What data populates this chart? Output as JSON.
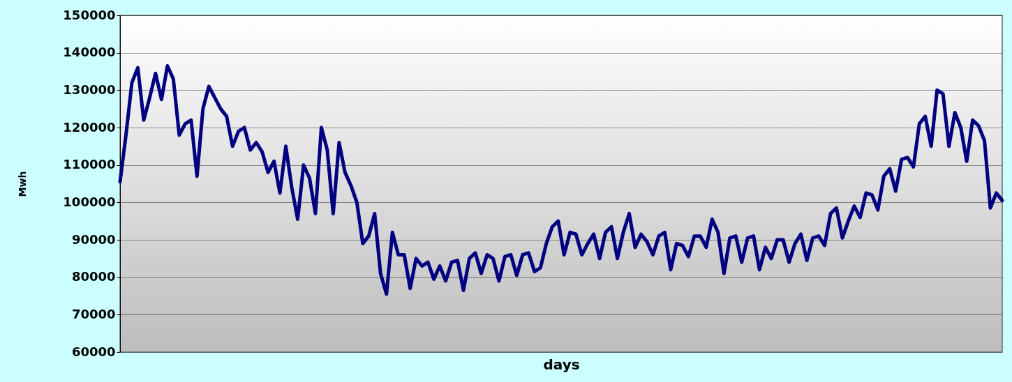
{
  "chart_data": {
    "type": "line",
    "xlabel": "days",
    "ylabel": "Mwh",
    "categories": [
      null,
      null,
      null,
      null,
      null,
      null,
      null,
      null,
      null,
      null,
      null,
      null,
      null,
      null,
      null,
      null,
      null,
      null,
      null,
      null,
      null,
      null,
      null,
      null,
      null,
      null,
      null,
      null,
      null,
      null,
      null,
      null,
      null,
      null,
      null,
      null,
      null,
      null,
      null,
      null,
      null,
      null,
      null,
      null,
      null,
      null,
      null,
      null,
      null,
      null,
      null,
      null,
      null,
      null,
      null,
      null,
      null,
      null,
      null,
      null,
      null,
      null,
      null,
      null,
      null,
      null,
      null,
      null,
      null,
      null,
      null,
      null,
      null,
      null,
      null,
      null,
      null,
      null,
      null,
      null,
      null,
      null,
      null,
      null,
      null,
      null,
      null,
      null,
      null,
      null,
      null,
      null,
      null,
      null,
      null,
      null,
      null,
      null,
      null,
      null,
      null,
      null,
      null,
      null,
      null,
      null,
      null,
      null,
      null,
      null,
      null,
      null,
      null,
      null,
      null,
      null,
      null,
      null,
      null,
      null,
      null,
      null,
      null,
      null,
      null,
      null,
      null,
      null,
      null,
      null,
      null,
      null,
      null,
      null,
      null,
      null,
      null,
      null,
      null,
      null,
      null,
      null,
      null,
      null,
      null,
      null,
      null,
      null,
      null,
      null
    ],
    "series": [
      {
        "color": "#000080",
        "values": [
          105500,
          118000,
          132000,
          136000,
          122000,
          128000,
          134500,
          127500,
          136500,
          133000,
          118000,
          121000,
          122000,
          107000,
          125000,
          131000,
          128000,
          125000,
          123000,
          115000,
          119000,
          120000,
          114000,
          116000,
          113500,
          108000,
          111000,
          102500,
          115000,
          104000,
          95500,
          110000,
          106500,
          97000,
          120000,
          114000,
          97000,
          116000,
          108000,
          104500,
          100000,
          89000,
          91000,
          97000,
          81000,
          75500,
          92000,
          86000,
          86000,
          77000,
          85000,
          83000,
          84000,
          79500,
          83000,
          79000,
          84000,
          84500,
          76500,
          85000,
          86500,
          81000,
          86000,
          85000,
          79000,
          85500,
          86000,
          80500,
          86000,
          86500,
          81500,
          82500,
          89000,
          93500,
          95000,
          86000,
          92000,
          91500,
          86000,
          89000,
          91500,
          85000,
          92000,
          93500,
          85000,
          92000,
          97000,
          88000,
          91500,
          89500,
          86000,
          91000,
          92000,
          82000,
          89000,
          88500,
          85500,
          91000,
          91000,
          88000,
          95500,
          92000,
          81000,
          90500,
          91000,
          84000,
          90500,
          91000,
          82000,
          88000,
          85000,
          90000,
          90000,
          84000,
          89000,
          91500,
          84500,
          90500,
          91000,
          88500,
          97000,
          98500,
          90500,
          95000,
          99000,
          96000,
          102500,
          102000,
          98000,
          107000,
          109000,
          103000,
          111500,
          112000,
          109500,
          121000,
          123000,
          115000,
          130000,
          129000,
          115000,
          124000,
          120000,
          111000,
          122000,
          120500,
          116500,
          98500,
          102500,
          100500
        ]
      }
    ],
    "ylim": [
      60000,
      150000
    ],
    "yticks": [
      60000,
      70000,
      80000,
      90000,
      100000,
      110000,
      120000,
      130000,
      140000,
      150000
    ],
    "grid": "y",
    "marker": "none",
    "line_style": "solid"
  }
}
